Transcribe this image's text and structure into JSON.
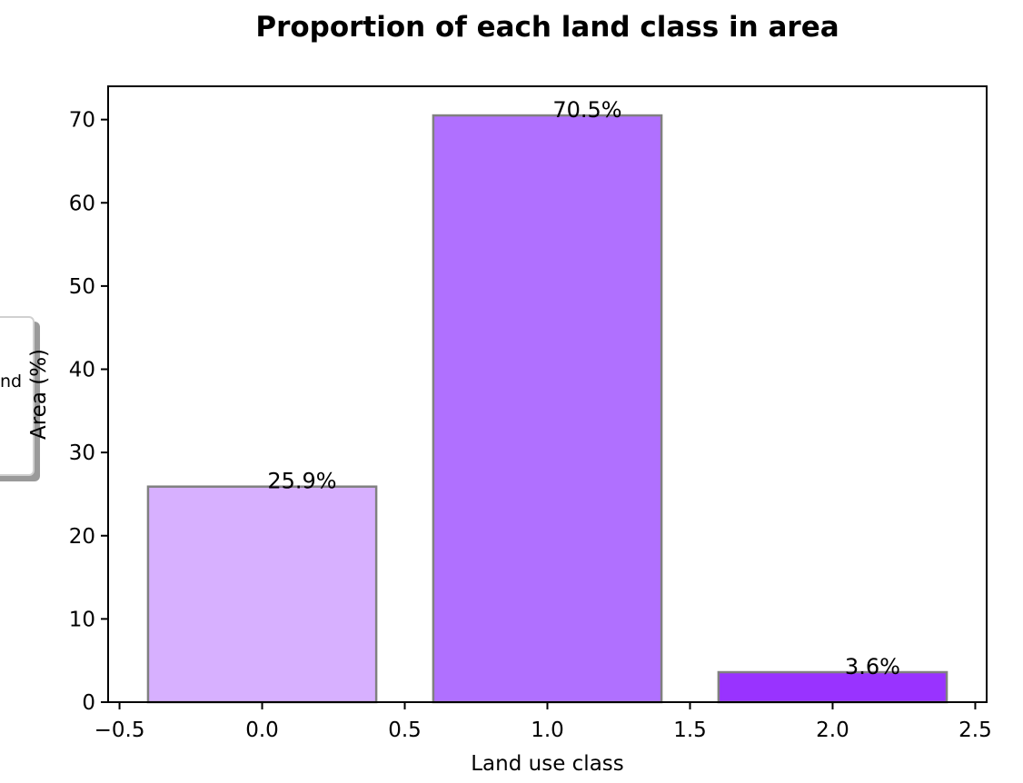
{
  "chart_data": {
    "type": "bar",
    "title": "Proportion of each land class in area",
    "xlabel": "Land use class",
    "ylabel": "Area (%)",
    "x": [
      0,
      1,
      2
    ],
    "values": [
      25.9,
      70.5,
      3.6
    ],
    "data_labels": [
      "25.9%",
      "70.5%",
      "3.6%"
    ],
    "colors": [
      "#d7b0ff",
      "#b070ff",
      "#9933ff"
    ],
    "edge_color": "#808080",
    "xlim": [
      -0.54,
      2.54
    ],
    "ylim": [
      0,
      74
    ],
    "xticks": [
      -0.5,
      0.0,
      0.5,
      1.0,
      1.5,
      2.0,
      2.5
    ],
    "xtick_labels": [
      "−0.5",
      "0.0",
      "0.5",
      "1.0",
      "1.5",
      "2.0",
      "2.5"
    ],
    "yticks": [
      0,
      10,
      20,
      30,
      40,
      50,
      60,
      70
    ],
    "ytick_labels": [
      "0",
      "10",
      "20",
      "30",
      "40",
      "50",
      "60",
      "70"
    ],
    "grid": false,
    "legend_placement": "center-left",
    "legend_text": "nd"
  }
}
